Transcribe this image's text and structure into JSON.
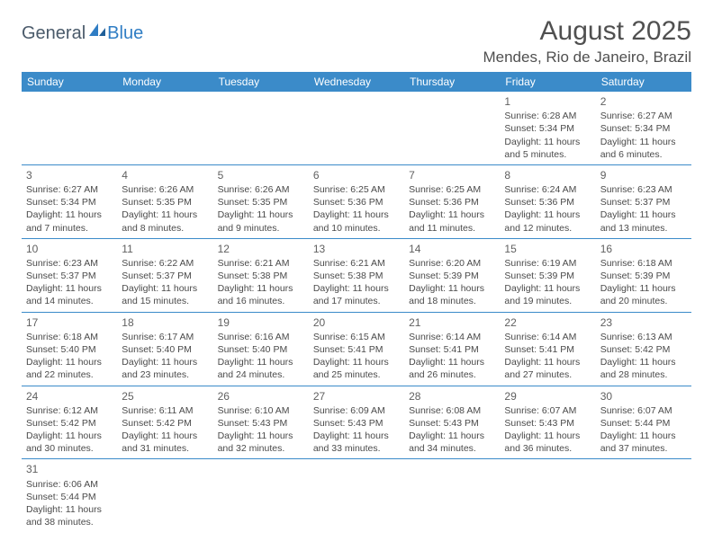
{
  "logo": {
    "general": "General",
    "blue": "Blue"
  },
  "title": "August 2025",
  "location": "Mendes, Rio de Janeiro, Brazil",
  "colors": {
    "header_bg": "#3b8bc9",
    "header_fg": "#ffffff",
    "border": "#3b8bc9",
    "text": "#4a4a4a"
  },
  "days_of_week": [
    "Sunday",
    "Monday",
    "Tuesday",
    "Wednesday",
    "Thursday",
    "Friday",
    "Saturday"
  ],
  "weeks": [
    [
      null,
      null,
      null,
      null,
      null,
      {
        "n": "1",
        "sr": "Sunrise: 6:28 AM",
        "ss": "Sunset: 5:34 PM",
        "dl": "Daylight: 11 hours and 5 minutes."
      },
      {
        "n": "2",
        "sr": "Sunrise: 6:27 AM",
        "ss": "Sunset: 5:34 PM",
        "dl": "Daylight: 11 hours and 6 minutes."
      }
    ],
    [
      {
        "n": "3",
        "sr": "Sunrise: 6:27 AM",
        "ss": "Sunset: 5:34 PM",
        "dl": "Daylight: 11 hours and 7 minutes."
      },
      {
        "n": "4",
        "sr": "Sunrise: 6:26 AM",
        "ss": "Sunset: 5:35 PM",
        "dl": "Daylight: 11 hours and 8 minutes."
      },
      {
        "n": "5",
        "sr": "Sunrise: 6:26 AM",
        "ss": "Sunset: 5:35 PM",
        "dl": "Daylight: 11 hours and 9 minutes."
      },
      {
        "n": "6",
        "sr": "Sunrise: 6:25 AM",
        "ss": "Sunset: 5:36 PM",
        "dl": "Daylight: 11 hours and 10 minutes."
      },
      {
        "n": "7",
        "sr": "Sunrise: 6:25 AM",
        "ss": "Sunset: 5:36 PM",
        "dl": "Daylight: 11 hours and 11 minutes."
      },
      {
        "n": "8",
        "sr": "Sunrise: 6:24 AM",
        "ss": "Sunset: 5:36 PM",
        "dl": "Daylight: 11 hours and 12 minutes."
      },
      {
        "n": "9",
        "sr": "Sunrise: 6:23 AM",
        "ss": "Sunset: 5:37 PM",
        "dl": "Daylight: 11 hours and 13 minutes."
      }
    ],
    [
      {
        "n": "10",
        "sr": "Sunrise: 6:23 AM",
        "ss": "Sunset: 5:37 PM",
        "dl": "Daylight: 11 hours and 14 minutes."
      },
      {
        "n": "11",
        "sr": "Sunrise: 6:22 AM",
        "ss": "Sunset: 5:37 PM",
        "dl": "Daylight: 11 hours and 15 minutes."
      },
      {
        "n": "12",
        "sr": "Sunrise: 6:21 AM",
        "ss": "Sunset: 5:38 PM",
        "dl": "Daylight: 11 hours and 16 minutes."
      },
      {
        "n": "13",
        "sr": "Sunrise: 6:21 AM",
        "ss": "Sunset: 5:38 PM",
        "dl": "Daylight: 11 hours and 17 minutes."
      },
      {
        "n": "14",
        "sr": "Sunrise: 6:20 AM",
        "ss": "Sunset: 5:39 PM",
        "dl": "Daylight: 11 hours and 18 minutes."
      },
      {
        "n": "15",
        "sr": "Sunrise: 6:19 AM",
        "ss": "Sunset: 5:39 PM",
        "dl": "Daylight: 11 hours and 19 minutes."
      },
      {
        "n": "16",
        "sr": "Sunrise: 6:18 AM",
        "ss": "Sunset: 5:39 PM",
        "dl": "Daylight: 11 hours and 20 minutes."
      }
    ],
    [
      {
        "n": "17",
        "sr": "Sunrise: 6:18 AM",
        "ss": "Sunset: 5:40 PM",
        "dl": "Daylight: 11 hours and 22 minutes."
      },
      {
        "n": "18",
        "sr": "Sunrise: 6:17 AM",
        "ss": "Sunset: 5:40 PM",
        "dl": "Daylight: 11 hours and 23 minutes."
      },
      {
        "n": "19",
        "sr": "Sunrise: 6:16 AM",
        "ss": "Sunset: 5:40 PM",
        "dl": "Daylight: 11 hours and 24 minutes."
      },
      {
        "n": "20",
        "sr": "Sunrise: 6:15 AM",
        "ss": "Sunset: 5:41 PM",
        "dl": "Daylight: 11 hours and 25 minutes."
      },
      {
        "n": "21",
        "sr": "Sunrise: 6:14 AM",
        "ss": "Sunset: 5:41 PM",
        "dl": "Daylight: 11 hours and 26 minutes."
      },
      {
        "n": "22",
        "sr": "Sunrise: 6:14 AM",
        "ss": "Sunset: 5:41 PM",
        "dl": "Daylight: 11 hours and 27 minutes."
      },
      {
        "n": "23",
        "sr": "Sunrise: 6:13 AM",
        "ss": "Sunset: 5:42 PM",
        "dl": "Daylight: 11 hours and 28 minutes."
      }
    ],
    [
      {
        "n": "24",
        "sr": "Sunrise: 6:12 AM",
        "ss": "Sunset: 5:42 PM",
        "dl": "Daylight: 11 hours and 30 minutes."
      },
      {
        "n": "25",
        "sr": "Sunrise: 6:11 AM",
        "ss": "Sunset: 5:42 PM",
        "dl": "Daylight: 11 hours and 31 minutes."
      },
      {
        "n": "26",
        "sr": "Sunrise: 6:10 AM",
        "ss": "Sunset: 5:43 PM",
        "dl": "Daylight: 11 hours and 32 minutes."
      },
      {
        "n": "27",
        "sr": "Sunrise: 6:09 AM",
        "ss": "Sunset: 5:43 PM",
        "dl": "Daylight: 11 hours and 33 minutes."
      },
      {
        "n": "28",
        "sr": "Sunrise: 6:08 AM",
        "ss": "Sunset: 5:43 PM",
        "dl": "Daylight: 11 hours and 34 minutes."
      },
      {
        "n": "29",
        "sr": "Sunrise: 6:07 AM",
        "ss": "Sunset: 5:43 PM",
        "dl": "Daylight: 11 hours and 36 minutes."
      },
      {
        "n": "30",
        "sr": "Sunrise: 6:07 AM",
        "ss": "Sunset: 5:44 PM",
        "dl": "Daylight: 11 hours and 37 minutes."
      }
    ],
    [
      {
        "n": "31",
        "sr": "Sunrise: 6:06 AM",
        "ss": "Sunset: 5:44 PM",
        "dl": "Daylight: 11 hours and 38 minutes."
      },
      null,
      null,
      null,
      null,
      null,
      null
    ]
  ]
}
